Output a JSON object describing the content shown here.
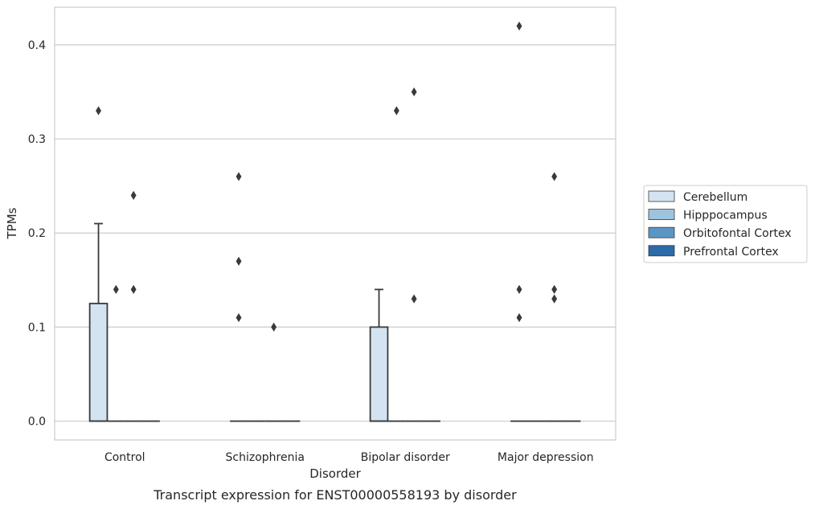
{
  "chart_data": {
    "type": "box",
    "title": "",
    "caption": "Transcript expression for ENST00000558193 by disorder",
    "xlabel": "Disorder",
    "ylabel": "TPMs",
    "ylim": [
      -0.02,
      0.44
    ],
    "yticks": [
      "0.0",
      "0.1",
      "0.2",
      "0.3",
      "0.4"
    ],
    "ytick_values": [
      0.0,
      0.1,
      0.2,
      0.3,
      0.4
    ],
    "grid": "horizontal",
    "legend_position": "right",
    "categories": [
      "Control",
      "Schizophrenia",
      "Bipolar disorder",
      "Major depression"
    ],
    "series": [
      {
        "name": "Cerebellum",
        "color": "#d4e3f2",
        "boxes": [
          {
            "q1": 0.0,
            "median": 0.0,
            "q3": 0.125,
            "whisker_low": 0.0,
            "whisker_high": 0.21,
            "outliers": [
              0.33
            ]
          },
          {
            "q1": 0.0,
            "median": 0.0,
            "q3": 0.0,
            "whisker_low": 0.0,
            "whisker_high": 0.0,
            "outliers": [
              0.26,
              0.17,
              0.11
            ]
          },
          {
            "q1": 0.0,
            "median": 0.0,
            "q3": 0.1,
            "whisker_low": 0.0,
            "whisker_high": 0.14,
            "outliers": []
          },
          {
            "q1": 0.0,
            "median": 0.0,
            "q3": 0.0,
            "whisker_low": 0.0,
            "whisker_high": 0.0,
            "outliers": [
              0.42,
              0.14,
              0.11
            ]
          }
        ]
      },
      {
        "name": "Hipppocampus",
        "color": "#9dc3de",
        "boxes": [
          {
            "q1": 0.0,
            "median": 0.0,
            "q3": 0.0,
            "whisker_low": 0.0,
            "whisker_high": 0.0,
            "outliers": [
              0.14
            ]
          },
          {
            "q1": 0.0,
            "median": 0.0,
            "q3": 0.0,
            "whisker_low": 0.0,
            "whisker_high": 0.0,
            "outliers": []
          },
          {
            "q1": 0.0,
            "median": 0.0,
            "q3": 0.0,
            "whisker_low": 0.0,
            "whisker_high": 0.0,
            "outliers": [
              0.33
            ]
          },
          {
            "q1": 0.0,
            "median": 0.0,
            "q3": 0.0,
            "whisker_low": 0.0,
            "whisker_high": 0.0,
            "outliers": []
          }
        ]
      },
      {
        "name": "Orbitofontal Cortex",
        "color": "#5a96c4",
        "boxes": [
          {
            "q1": 0.0,
            "median": 0.0,
            "q3": 0.0,
            "whisker_low": 0.0,
            "whisker_high": 0.0,
            "outliers": [
              0.24,
              0.14
            ]
          },
          {
            "q1": 0.0,
            "median": 0.0,
            "q3": 0.0,
            "whisker_low": 0.0,
            "whisker_high": 0.0,
            "outliers": [
              0.1
            ]
          },
          {
            "q1": 0.0,
            "median": 0.0,
            "q3": 0.0,
            "whisker_low": 0.0,
            "whisker_high": 0.0,
            "outliers": [
              0.35,
              0.13
            ]
          },
          {
            "q1": 0.0,
            "median": 0.0,
            "q3": 0.0,
            "whisker_low": 0.0,
            "whisker_high": 0.0,
            "outliers": [
              0.26,
              0.14,
              0.13
            ]
          }
        ]
      },
      {
        "name": "Prefrontal Cortex",
        "color": "#2c6aa8",
        "boxes": [
          {
            "q1": 0.0,
            "median": 0.0,
            "q3": 0.0,
            "whisker_low": 0.0,
            "whisker_high": 0.0,
            "outliers": []
          },
          {
            "q1": 0.0,
            "median": 0.0,
            "q3": 0.0,
            "whisker_low": 0.0,
            "whisker_high": 0.0,
            "outliers": []
          },
          {
            "q1": 0.0,
            "median": 0.0,
            "q3": 0.0,
            "whisker_low": 0.0,
            "whisker_high": 0.0,
            "outliers": []
          },
          {
            "q1": 0.0,
            "median": 0.0,
            "q3": 0.0,
            "whisker_low": 0.0,
            "whisker_high": 0.0,
            "outliers": []
          }
        ]
      }
    ]
  }
}
